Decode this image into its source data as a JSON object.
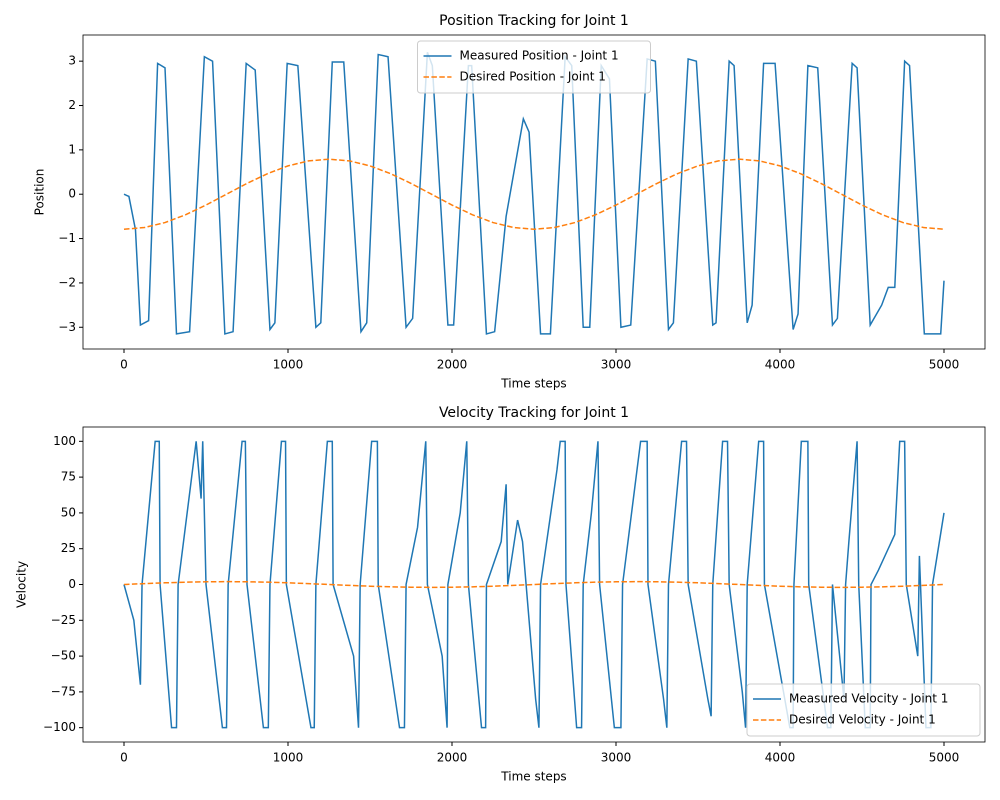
{
  "chart_data": [
    {
      "type": "line",
      "title": "Position Tracking for Joint 1",
      "xlabel": "Time steps",
      "ylabel": "Position",
      "xlim": [
        -250,
        5250
      ],
      "ylim": [
        -3.49,
        3.59
      ],
      "xticks": [
        0,
        1000,
        2000,
        3000,
        4000,
        5000
      ],
      "yticks": [
        {
          "value": -3,
          "label": "−3"
        },
        {
          "value": -2,
          "label": "−2"
        },
        {
          "value": -1,
          "label": "−1"
        },
        0,
        1,
        2,
        3
      ],
      "legend": "upper center",
      "series": [
        {
          "name": "Measured Position - Joint 1",
          "color": "#1f77b4",
          "linestyle": "solid",
          "x": [
            0,
            30,
            70,
            100,
            150,
            205,
            250,
            320,
            400,
            490,
            540,
            615,
            665,
            745,
            800,
            890,
            920,
            995,
            1060,
            1170,
            1200,
            1270,
            1340,
            1445,
            1480,
            1550,
            1610,
            1720,
            1760,
            1850,
            1880,
            1975,
            2010,
            2100,
            2120,
            2210,
            2260,
            2330,
            2435,
            2470,
            2540,
            2600,
            2690,
            2730,
            2800,
            2840,
            2910,
            2960,
            3030,
            3090,
            3190,
            3240,
            3320,
            3350,
            3440,
            3490,
            3590,
            3610,
            3690,
            3720,
            3800,
            3830,
            3900,
            3970,
            4080,
            4110,
            4170,
            4230,
            4320,
            4350,
            4440,
            4470,
            4550,
            4620,
            4660,
            4700,
            4760,
            4790,
            4800,
            4880,
            4980,
            5000
          ],
          "values": [
            0,
            -0.05,
            -0.8,
            -2.95,
            -2.85,
            2.95,
            2.85,
            -3.15,
            -3.1,
            3.1,
            3.0,
            -3.15,
            -3.1,
            2.95,
            2.8,
            -3.05,
            -2.9,
            2.95,
            2.9,
            -3.0,
            -2.9,
            2.98,
            2.98,
            -3.1,
            -2.9,
            3.15,
            3.1,
            -3.0,
            -2.8,
            3.2,
            2.9,
            -2.95,
            -2.95,
            2.9,
            2.9,
            -3.15,
            -3.1,
            -0.5,
            1.7,
            1.4,
            -3.15,
            -3.15,
            3.1,
            2.9,
            -3.0,
            -3.0,
            2.9,
            2.6,
            -3.0,
            -2.95,
            3.05,
            3.0,
            -3.05,
            -2.9,
            3.05,
            3.0,
            -2.95,
            -2.9,
            3.0,
            2.9,
            -2.9,
            -2.5,
            2.95,
            2.95,
            -3.05,
            -2.7,
            2.9,
            2.85,
            -2.95,
            -2.8,
            2.95,
            2.85,
            -2.95,
            -2.5,
            -2.1,
            -2.1,
            3.0,
            2.9,
            2.2,
            -3.15,
            -3.15,
            -1.95
          ]
        },
        {
          "name": "Desired Position - Joint 1",
          "color": "#ff7f0e",
          "linestyle": "dashed",
          "x": [
            0,
            125,
            250,
            375,
            500,
            625,
            750,
            875,
            1000,
            1125,
            1250,
            1375,
            1500,
            1625,
            1750,
            1875,
            2000,
            2125,
            2250,
            2375,
            2500,
            2625,
            2750,
            2875,
            3000,
            3125,
            3250,
            3375,
            3500,
            3625,
            3750,
            3875,
            4000,
            4125,
            4250,
            4375,
            4500,
            4625,
            4750,
            4875,
            5000
          ],
          "values": [
            -0.79,
            -0.751,
            -0.639,
            -0.464,
            -0.244,
            0,
            0.244,
            0.464,
            0.639,
            0.751,
            0.79,
            0.751,
            0.639,
            0.464,
            0.244,
            0,
            -0.244,
            -0.464,
            -0.639,
            -0.751,
            -0.79,
            -0.751,
            -0.639,
            -0.464,
            -0.244,
            0,
            0.244,
            0.464,
            0.639,
            0.751,
            0.79,
            0.751,
            0.639,
            0.464,
            0.244,
            0,
            -0.244,
            -0.464,
            -0.639,
            -0.751,
            -0.79
          ]
        }
      ]
    },
    {
      "type": "line",
      "title": "Velocity Tracking for Joint 1",
      "xlabel": "Time steps",
      "ylabel": "Velocity",
      "xlim": [
        -250,
        5250
      ],
      "ylim": [
        -110,
        110
      ],
      "xticks": [
        0,
        1000,
        2000,
        3000,
        4000,
        5000
      ],
      "yticks": [
        {
          "value": -100,
          "label": "−100"
        },
        {
          "value": -75,
          "label": "−75"
        },
        {
          "value": -50,
          "label": "−50"
        },
        {
          "value": -25,
          "label": "−25"
        },
        0,
        25,
        50,
        75,
        100
      ],
      "legend": "lower right",
      "series": [
        {
          "name": "Measured Velocity - Joint 1",
          "color": "#1f77b4",
          "linestyle": "solid",
          "x": [
            0,
            60,
            100,
            110,
            190,
            215,
            220,
            290,
            320,
            330,
            440,
            470,
            480,
            500,
            600,
            625,
            635,
            720,
            740,
            750,
            850,
            880,
            890,
            960,
            985,
            990,
            1140,
            1160,
            1170,
            1240,
            1270,
            1275,
            1400,
            1430,
            1440,
            1510,
            1545,
            1550,
            1680,
            1710,
            1720,
            1790,
            1840,
            1850,
            1940,
            1970,
            1975,
            2050,
            2090,
            2100,
            2180,
            2205,
            2210,
            2300,
            2330,
            2340,
            2400,
            2430,
            2510,
            2530,
            2540,
            2640,
            2660,
            2690,
            2695,
            2760,
            2790,
            2800,
            2850,
            2890,
            2900,
            2990,
            3030,
            3040,
            3150,
            3190,
            3195,
            3290,
            3310,
            3320,
            3400,
            3430,
            3440,
            3560,
            3580,
            3590,
            3650,
            3680,
            3690,
            3770,
            3790,
            3800,
            3870,
            3900,
            3905,
            4060,
            4080,
            4085,
            4130,
            4170,
            4175,
            4290,
            4310,
            4320,
            4390,
            4400,
            4420,
            4470,
            4480,
            4520,
            4550,
            4555,
            4600,
            4700,
            4730,
            4760,
            4770,
            4840,
            4850,
            4890,
            4920,
            4930,
            5000
          ],
          "values": [
            0,
            -25,
            -70,
            0,
            100,
            100,
            0,
            -100,
            -100,
            0,
            100,
            60,
            100,
            0,
            -100,
            -100,
            0,
            100,
            100,
            0,
            -100,
            -100,
            0,
            100,
            100,
            0,
            -100,
            -100,
            0,
            100,
            100,
            0,
            -50,
            -100,
            0,
            100,
            100,
            0,
            -100,
            -100,
            0,
            40,
            100,
            0,
            -50,
            -100,
            0,
            50,
            100,
            0,
            -100,
            -100,
            0,
            30,
            70,
            0,
            45,
            30,
            -80,
            -100,
            0,
            80,
            100,
            100,
            0,
            -100,
            -100,
            0,
            50,
            100,
            0,
            -100,
            -100,
            0,
            100,
            100,
            0,
            -80,
            -100,
            0,
            100,
            100,
            0,
            -80,
            -92,
            0,
            100,
            100,
            0,
            -75,
            -100,
            0,
            100,
            100,
            0,
            -100,
            -100,
            0,
            100,
            100,
            0,
            -100,
            -100,
            0,
            -80,
            0,
            30,
            100,
            0,
            -100,
            -100,
            0,
            10,
            35,
            100,
            100,
            0,
            -50,
            20,
            -100,
            -100,
            0,
            50
          ]
        },
        {
          "name": "Desired Velocity - Joint 1",
          "color": "#ff7f0e",
          "linestyle": "dashed",
          "x": [
            0,
            125,
            250,
            375,
            500,
            625,
            750,
            875,
            1000,
            1125,
            1250,
            1375,
            1500,
            1625,
            1750,
            1875,
            2000,
            2125,
            2250,
            2375,
            2500,
            2625,
            2750,
            2875,
            3000,
            3125,
            3250,
            3375,
            3500,
            3625,
            3750,
            3875,
            4000,
            4125,
            4250,
            4375,
            4500,
            4625,
            4750,
            4875,
            5000
          ],
          "values": [
            0,
            0.62,
            1.18,
            1.62,
            1.9,
            2,
            1.9,
            1.62,
            1.18,
            0.62,
            0,
            -0.62,
            -1.18,
            -1.62,
            -1.9,
            -2,
            -1.9,
            -1.62,
            -1.18,
            -0.62,
            0,
            0.62,
            1.18,
            1.62,
            1.9,
            2,
            1.9,
            1.62,
            1.18,
            0.62,
            0,
            -0.62,
            -1.18,
            -1.62,
            -1.9,
            -2,
            -1.9,
            -1.62,
            -1.18,
            -0.62,
            0
          ]
        }
      ]
    }
  ]
}
